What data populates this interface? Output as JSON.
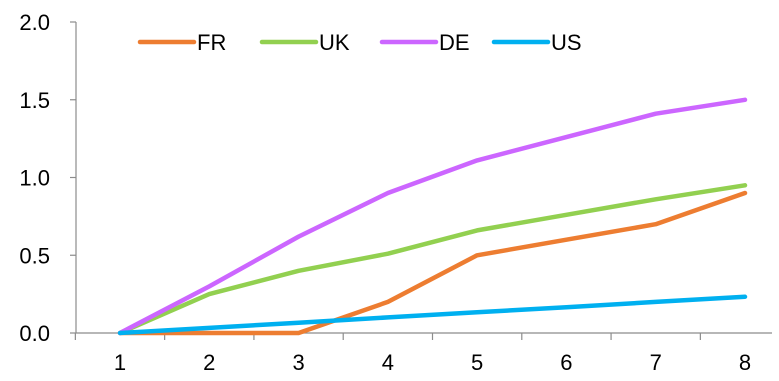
{
  "chart_data": {
    "type": "line",
    "x": [
      "1",
      "2",
      "3",
      "4",
      "5",
      "6",
      "7",
      "8"
    ],
    "ylim": [
      0,
      2.0
    ],
    "yticks": [
      "0.0",
      "0.5",
      "1.0",
      "1.5",
      "2.0"
    ],
    "grid": false,
    "legend_position": "top",
    "series": [
      {
        "name": "FR",
        "color": "#ED7D31",
        "values": [
          0.0,
          0.0,
          0.0,
          0.2,
          0.5,
          0.6,
          0.7,
          0.9
        ]
      },
      {
        "name": "UK",
        "color": "#92D050",
        "values": [
          0.0,
          0.25,
          0.4,
          0.51,
          0.66,
          0.76,
          0.86,
          0.95
        ]
      },
      {
        "name": "DE",
        "color": "#CC66FF",
        "values": [
          0.0,
          0.3,
          0.62,
          0.9,
          1.11,
          1.26,
          1.41,
          1.5
        ]
      },
      {
        "name": "US",
        "color": "#00B0F0",
        "values": [
          0.0,
          0.033,
          0.066,
          0.1,
          0.133,
          0.166,
          0.2,
          0.233
        ]
      }
    ]
  }
}
